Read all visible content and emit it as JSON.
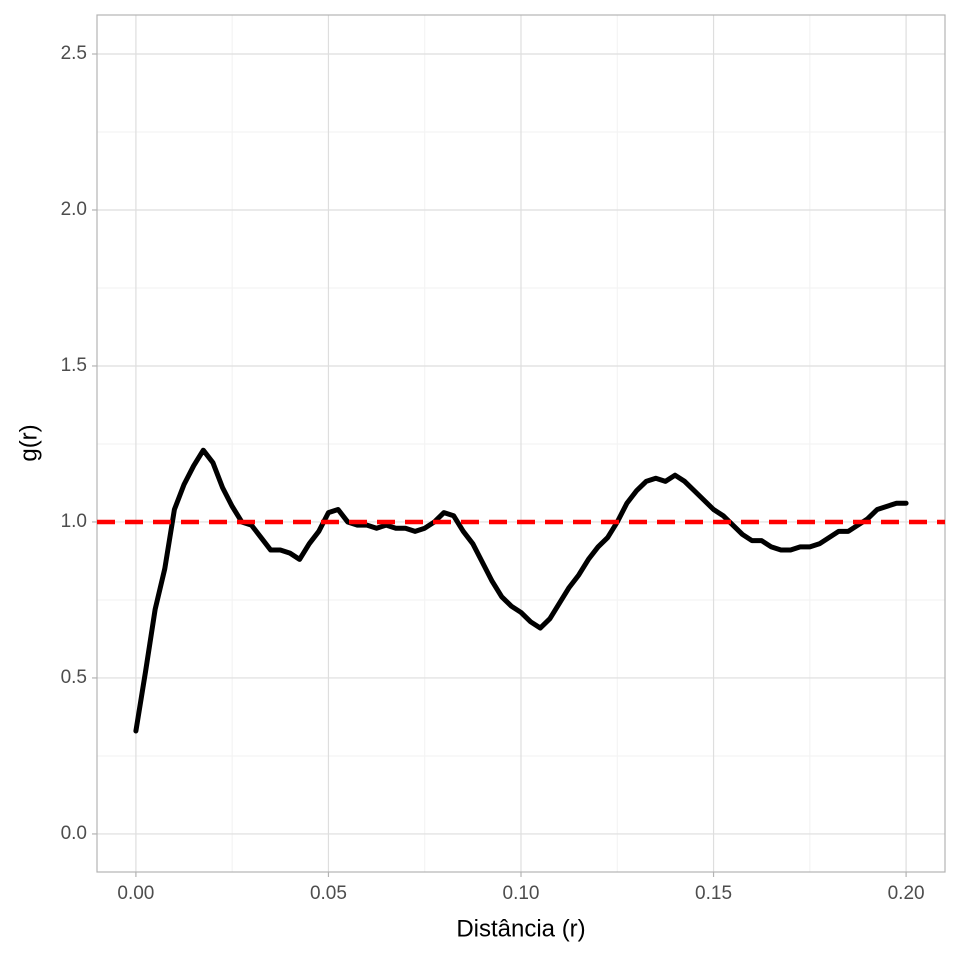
{
  "chart_data": {
    "type": "line",
    "x_label": "Distância (r)",
    "y_label": "g(r)",
    "x": [
      0,
      0.0025,
      0.005,
      0.0075,
      0.01,
      0.0125,
      0.015,
      0.0175,
      0.02,
      0.0225,
      0.025,
      0.0275,
      0.03,
      0.0325,
      0.035,
      0.0375,
      0.04,
      0.0425,
      0.045,
      0.0475,
      0.05,
      0.0525,
      0.055,
      0.0575,
      0.06,
      0.0625,
      0.065,
      0.0675,
      0.07,
      0.0725,
      0.075,
      0.0775,
      0.08,
      0.0825,
      0.085,
      0.0875,
      0.09,
      0.0925,
      0.095,
      0.0975,
      0.1,
      0.1025,
      0.105,
      0.1075,
      0.11,
      0.1125,
      0.115,
      0.1175,
      0.12,
      0.1225,
      0.125,
      0.1275,
      0.13,
      0.1325,
      0.135,
      0.1375,
      0.14,
      0.1425,
      0.145,
      0.1475,
      0.15,
      0.1525,
      0.155,
      0.1575,
      0.16,
      0.1625,
      0.165,
      0.1675,
      0.17,
      0.1725,
      0.175,
      0.1775,
      0.18,
      0.1825,
      0.185,
      0.1875,
      0.19,
      0.1925,
      0.195,
      0.1975,
      0.2
    ],
    "series": [
      {
        "color": "#000000",
        "values": [
          0.33,
          0.52,
          0.72,
          0.85,
          1.04,
          1.12,
          1.18,
          1.23,
          1.19,
          1.11,
          1.05,
          1.0,
          0.99,
          0.95,
          0.91,
          0.91,
          0.9,
          0.88,
          0.93,
          0.97,
          1.03,
          1.04,
          1.0,
          0.99,
          0.99,
          0.98,
          0.99,
          0.98,
          0.98,
          0.97,
          0.98,
          1.0,
          1.03,
          1.02,
          0.97,
          0.93,
          0.87,
          0.81,
          0.76,
          0.73,
          0.71,
          0.68,
          0.66,
          0.69,
          0.74,
          0.79,
          0.83,
          0.88,
          0.92,
          0.95,
          1.0,
          1.06,
          1.1,
          1.13,
          1.14,
          1.13,
          1.15,
          1.13,
          1.1,
          1.07,
          1.04,
          1.02,
          0.99,
          0.96,
          0.94,
          0.94,
          0.92,
          0.91,
          0.91,
          0.92,
          0.92,
          0.93,
          0.95,
          0.97,
          0.97,
          0.99,
          1.01,
          1.04,
          1.05,
          1.06,
          1.06
        ]
      }
    ],
    "hline": {
      "value": 1,
      "color": "#ff0000",
      "dash": true
    },
    "xlim": [
      -0.0101,
      0.2101
    ],
    "ylim": [
      -0.122,
      2.625
    ],
    "xticks": [
      {
        "value": 0,
        "label": "0.00"
      },
      {
        "value": 0.05,
        "label": "0.05"
      },
      {
        "value": 0.1,
        "label": "0.10"
      },
      {
        "value": 0.15,
        "label": "0.15"
      },
      {
        "value": 0.2,
        "label": "0.20"
      }
    ],
    "yticks": [
      {
        "value": 0,
        "label": "0.0"
      },
      0.5,
      {
        "value": 1,
        "label": "1.0"
      },
      1.5,
      {
        "value": 2,
        "label": "2.0"
      },
      2.5
    ],
    "grid": true,
    "minor_grid": true
  }
}
